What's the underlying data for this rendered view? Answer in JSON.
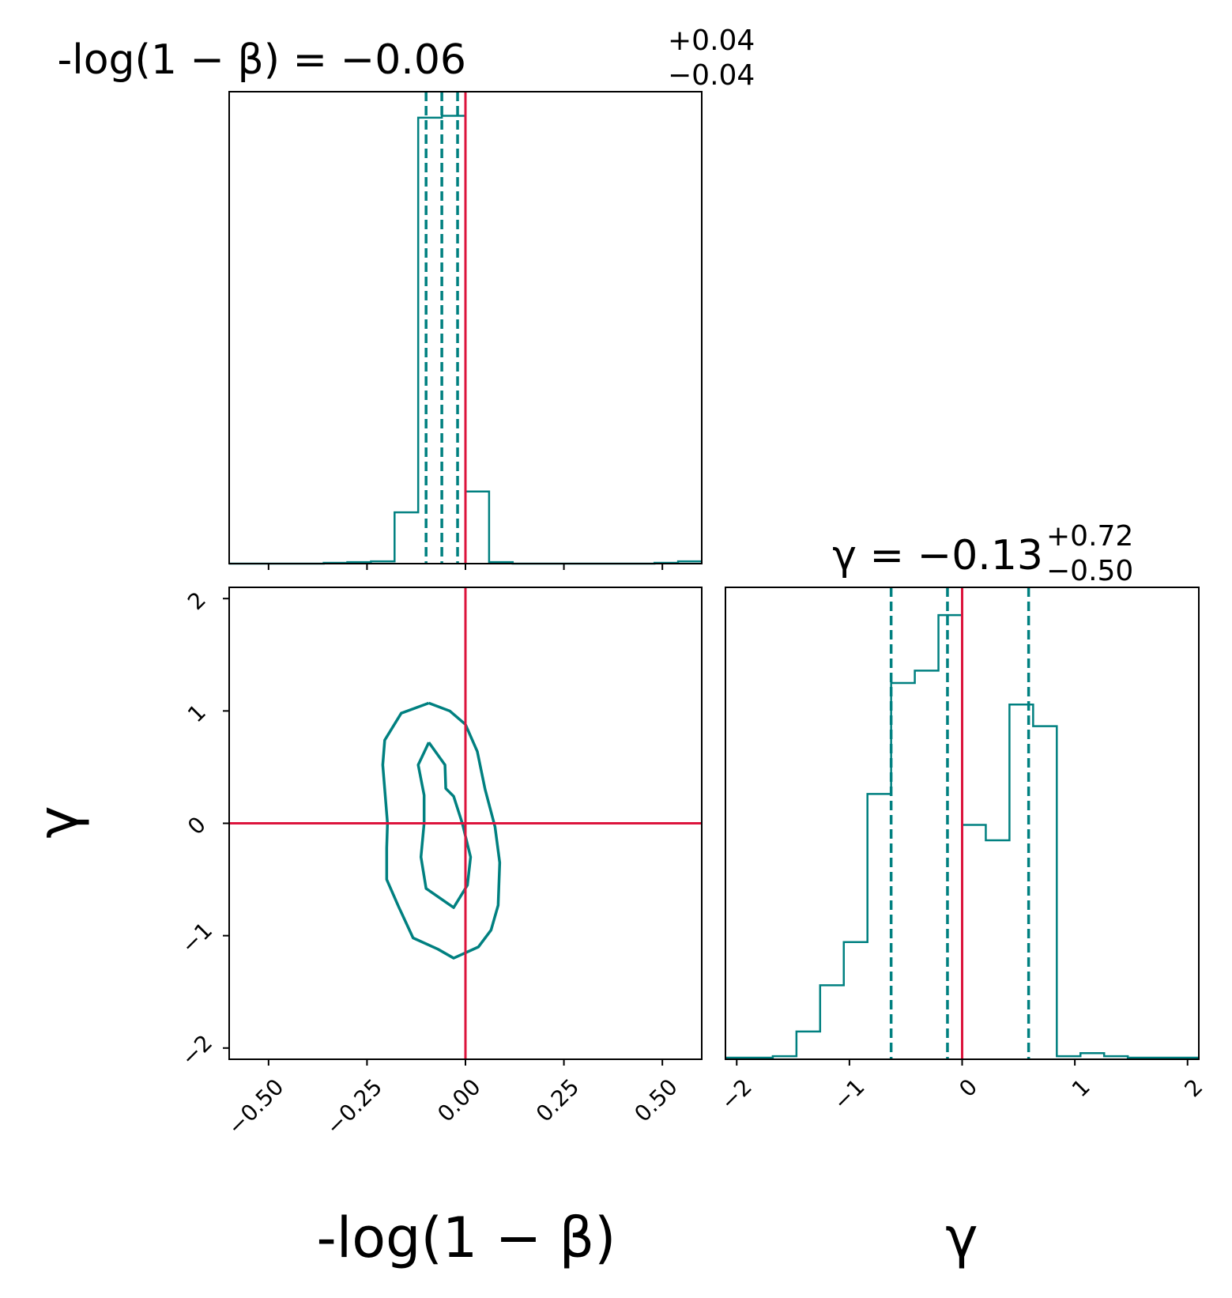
{
  "colors": {
    "posterior": "#008080",
    "truth": "#dc143c",
    "axes": "#000000"
  },
  "chart_data": [
    {
      "type": "histogram",
      "panel": "marginal-beta",
      "title_lhs": "-log(1 − β) = −0.06",
      "title_sup": "+0.04",
      "title_sub": "−0.04",
      "xlim": [
        -0.6,
        0.6
      ],
      "xticks": [
        -0.5,
        -0.25,
        0.0,
        0.25,
        0.5
      ],
      "bin_edges": [
        -0.6,
        -0.54,
        -0.48,
        -0.42,
        -0.36,
        -0.3,
        -0.24,
        -0.18,
        -0.12,
        -0.06,
        0.0,
        0.06,
        0.12,
        0.18,
        0.24,
        0.3,
        0.36,
        0.42,
        0.48,
        0.54,
        0.6
      ],
      "counts": [
        0,
        0,
        0,
        0,
        0.2,
        0.4,
        0.6,
        13.8,
        120,
        120.5,
        19.4,
        0.4,
        0,
        0,
        0,
        0,
        0,
        0,
        0.2,
        0.6
      ],
      "ymax": 127,
      "quantiles": [
        -0.1,
        -0.06,
        -0.02
      ],
      "truth": 0.0
    },
    {
      "type": "contour",
      "panel": "joint",
      "xlim": [
        -0.6,
        0.6
      ],
      "ylim": [
        -2.1,
        2.1
      ],
      "xticks": [
        -0.5,
        -0.25,
        0.0,
        0.25,
        0.5
      ],
      "xtick_labels": [
        "−0.50",
        "−0.25",
        "0.00",
        "0.25",
        "0.50"
      ],
      "yticks": [
        -2,
        -1,
        0,
        1,
        2
      ],
      "ytick_labels": [
        "−2",
        "−1",
        "0",
        "1",
        "2"
      ],
      "xlabel": "-log(1 − β)",
      "ylabel": "γ",
      "truth": {
        "x": 0.0,
        "y": 0.0
      },
      "contours": [
        {
          "level": "inner",
          "points": [
            [
              -0.093,
              0.72
            ],
            [
              -0.052,
              0.52
            ],
            [
              -0.05,
              0.31
            ],
            [
              -0.03,
              0.24
            ],
            [
              -0.008,
              0.0
            ],
            [
              0.013,
              -0.3
            ],
            [
              0.005,
              -0.55
            ],
            [
              -0.03,
              -0.75
            ],
            [
              -0.1,
              -0.58
            ],
            [
              -0.113,
              -0.3
            ],
            [
              -0.105,
              0.0
            ],
            [
              -0.105,
              0.25
            ],
            [
              -0.12,
              0.52
            ],
            [
              -0.093,
              0.72
            ]
          ]
        },
        {
          "level": "outer",
          "points": [
            [
              -0.093,
              1.07
            ],
            [
              -0.04,
              1.0
            ],
            [
              0.0,
              0.88
            ],
            [
              0.03,
              0.64
            ],
            [
              0.05,
              0.3
            ],
            [
              0.075,
              -0.03
            ],
            [
              0.087,
              -0.35
            ],
            [
              0.083,
              -0.73
            ],
            [
              0.065,
              -0.95
            ],
            [
              0.033,
              -1.1
            ],
            [
              -0.03,
              -1.2
            ],
            [
              -0.07,
              -1.12
            ],
            [
              -0.133,
              -1.02
            ],
            [
              -0.17,
              -0.74
            ],
            [
              -0.2,
              -0.5
            ],
            [
              -0.2,
              -0.22
            ],
            [
              -0.198,
              0.0
            ],
            [
              -0.21,
              0.52
            ],
            [
              -0.205,
              0.74
            ],
            [
              -0.163,
              0.98
            ],
            [
              -0.093,
              1.07
            ]
          ]
        }
      ]
    },
    {
      "type": "histogram",
      "panel": "marginal-gamma",
      "title_lhs": "γ = −0.13",
      "title_sup": "+0.72",
      "title_sub": "−0.50",
      "xlabel": "γ",
      "xlim": [
        -2.1,
        2.1
      ],
      "xticks": [
        -2,
        -1,
        0,
        1,
        2
      ],
      "xtick_labels": [
        "−2",
        "−1",
        "0",
        "1",
        "2"
      ],
      "bin_edges": [
        -2.1,
        -1.89,
        -1.68,
        -1.47,
        -1.26,
        -1.05,
        -0.84,
        -0.63,
        -0.42,
        -0.21,
        0.0,
        0.21,
        0.42,
        0.63,
        0.84,
        1.05,
        1.26,
        1.47,
        1.68,
        1.89,
        2.1
      ],
      "counts": [
        0.5,
        0.5,
        1.0,
        9.0,
        24.0,
        38.0,
        86.0,
        122.0,
        126.0,
        144.0,
        76.0,
        71.0,
        115.0,
        108.0,
        1.0,
        2.0,
        1.0,
        0.5,
        0.5,
        0.5
      ],
      "ymax": 153,
      "quantiles": [
        -0.63,
        -0.13,
        0.59
      ],
      "truth": 0.0
    }
  ]
}
